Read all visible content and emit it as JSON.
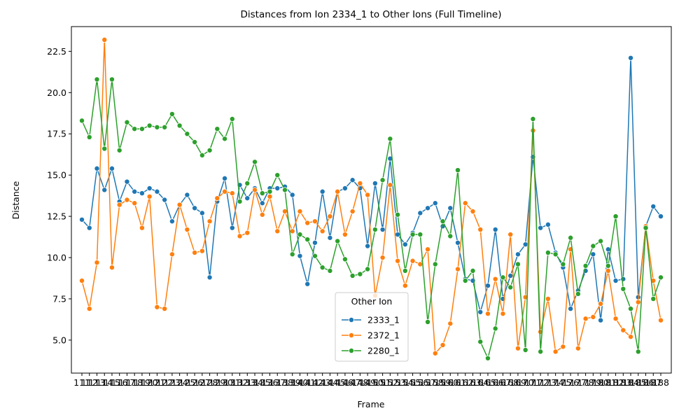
{
  "chart_data": {
    "type": "line",
    "title": "Distances from Ion 2334_1 to Other Ions (Full Timeline)",
    "xlabel": "Frame",
    "ylabel": "Distance",
    "ylim": [
      3.0,
      24.0
    ],
    "yticks": [
      5.0,
      7.5,
      10.0,
      12.5,
      15.0,
      17.5,
      20.0,
      22.5
    ],
    "ytick_labels": [
      "5.0",
      "7.5",
      "10.0",
      "12.5",
      "15.0",
      "17.5",
      "20.0",
      "22.5"
    ],
    "legend": {
      "title": "Other Ion",
      "placement": "lower-center"
    },
    "series": [
      {
        "name": "2333_1",
        "color": "#1f77b4",
        "values": [
          12.3,
          11.8,
          15.4,
          14.1,
          15.4,
          13.4,
          14.6,
          14.0,
          13.9,
          14.2,
          14.0,
          13.5,
          12.2,
          13.2,
          13.8,
          13.0,
          12.7,
          8.8,
          13.4,
          14.8,
          11.8,
          14.4,
          13.6,
          14.2,
          13.3,
          14.2,
          14.2,
          14.3,
          13.8,
          10.1,
          8.4,
          10.9,
          14.0,
          11.2,
          14.0,
          14.2,
          14.7,
          14.2,
          10.7,
          14.5,
          11.7,
          16.0,
          11.4,
          10.8,
          11.5,
          12.7,
          13.0,
          13.3,
          11.9,
          13.0,
          10.9,
          8.7,
          8.6,
          6.7,
          8.3,
          11.7,
          7.5,
          8.9,
          10.2,
          10.8,
          16.1,
          11.8,
          12.0,
          10.3,
          9.4,
          6.9,
          8.0,
          9.2,
          10.2,
          6.2,
          10.5,
          8.6,
          8.7,
          22.1,
          7.6,
          11.9,
          13.1,
          12.5
        ]
      },
      {
        "name": "2372_1",
        "color": "#ff7f0e",
        "values": [
          8.6,
          6.9,
          9.7,
          23.2,
          9.4,
          13.2,
          13.5,
          13.3,
          11.8,
          13.7,
          7.0,
          6.9,
          10.2,
          13.2,
          11.7,
          10.3,
          10.4,
          12.2,
          13.6,
          14.0,
          13.9,
          11.3,
          11.5,
          14.1,
          12.6,
          13.7,
          11.6,
          12.8,
          11.6,
          12.8,
          12.1,
          12.2,
          11.6,
          12.5,
          14.0,
          11.4,
          12.8,
          14.5,
          13.8,
          7.7,
          10.0,
          14.4,
          9.8,
          8.3,
          9.8,
          9.6,
          10.5,
          4.2,
          4.7,
          6.0,
          9.3,
          13.3,
          12.8,
          11.7,
          6.6,
          8.7,
          6.6,
          11.4,
          4.5,
          7.6,
          17.7,
          5.5,
          7.5,
          4.3,
          4.6,
          10.5,
          4.5,
          6.3,
          6.4,
          7.2,
          9.2,
          6.3,
          5.6,
          5.2,
          7.3,
          11.9,
          8.6,
          6.2
        ]
      },
      {
        "name": "2280_1",
        "color": "#2ca02c",
        "values": [
          18.3,
          17.3,
          20.8,
          16.6,
          20.8,
          16.5,
          18.2,
          17.8,
          17.8,
          18.0,
          17.9,
          17.9,
          18.7,
          18.0,
          17.5,
          17.0,
          16.2,
          16.5,
          17.8,
          17.2,
          18.4,
          13.4,
          14.5,
          15.8,
          13.9,
          14.0,
          15.0,
          14.1,
          10.2,
          11.4,
          11.1,
          10.1,
          9.4,
          9.2,
          11.0,
          9.9,
          8.9,
          9.0,
          9.3,
          11.7,
          14.7,
          17.2,
          12.6,
          9.2,
          11.4,
          11.4,
          6.1,
          9.6,
          12.2,
          11.3,
          15.3,
          8.6,
          9.2,
          4.9,
          3.9,
          5.7,
          8.8,
          8.2,
          9.6,
          4.4,
          18.4,
          4.3,
          10.3,
          10.2,
          9.6,
          11.2,
          7.8,
          9.5,
          10.7,
          11.0,
          9.5,
          12.5,
          8.1,
          6.9,
          4.3,
          11.8,
          7.5,
          8.8
        ]
      }
    ],
    "x": [
      "111",
      "112",
      "113",
      "114",
      "115",
      "116",
      "117",
      "118",
      "119",
      "120",
      "121",
      "122",
      "123",
      "124",
      "125",
      "126",
      "127",
      "128",
      "129",
      "130",
      "131",
      "132",
      "133",
      "134",
      "135",
      "136",
      "137",
      "138",
      "139",
      "140",
      "141",
      "142",
      "143",
      "144",
      "145",
      "146",
      "147",
      "148",
      "149",
      "150",
      "151",
      "152",
      "153",
      "154",
      "155",
      "156",
      "157",
      "158",
      "159",
      "160",
      "161",
      "162",
      "163",
      "164",
      "165",
      "166",
      "167",
      "168",
      "169",
      "170",
      "171",
      "172",
      "173",
      "174",
      "175",
      "176",
      "177",
      "178",
      "179",
      "180",
      "181",
      "182",
      "183",
      "184",
      "185",
      "186",
      "187",
      "188"
    ],
    "xtick_labels": [
      "111",
      "112",
      "113",
      "114",
      "115",
      "116",
      "117",
      "118",
      "119",
      "120",
      "121",
      "122",
      "123",
      "124",
      "125",
      "126",
      "127",
      "128",
      "129",
      "130",
      "131",
      "132",
      "133",
      "134",
      "135",
      "136",
      "137",
      "138",
      "139",
      "140",
      "141",
      "142",
      "143",
      "144",
      "145",
      "146",
      "147",
      "148",
      "149",
      "150",
      "151",
      "152",
      "153",
      "154",
      "155",
      "156",
      "157",
      "158",
      "159",
      "160",
      "161",
      "162",
      "163",
      "164",
      "165",
      "166",
      "167",
      "168",
      "169",
      "170",
      "171",
      "172",
      "173",
      "174",
      "175",
      "176",
      "177",
      "178",
      "179",
      "180",
      "181",
      "182",
      "183",
      "184",
      "185",
      "186",
      "187",
      "188"
    ]
  }
}
